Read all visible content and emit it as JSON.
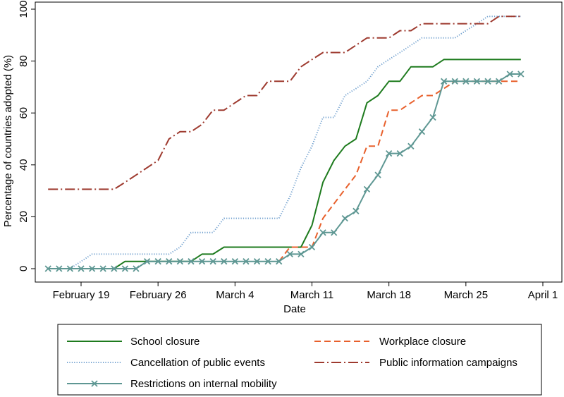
{
  "chart_data": {
    "type": "line",
    "title": "",
    "xlabel": "Date",
    "ylabel": "Percentage of countries adopted (%)",
    "ylim": [
      0,
      100
    ],
    "yticks": [
      0,
      20,
      40,
      60,
      80,
      100
    ],
    "x_ticks": [
      {
        "date": "2020-02-19",
        "label": "February 19"
      },
      {
        "date": "2020-02-26",
        "label": "February 26"
      },
      {
        "date": "2020-03-04",
        "label": "March 4"
      },
      {
        "date": "2020-03-11",
        "label": "March 11"
      },
      {
        "date": "2020-03-18",
        "label": "March 18"
      },
      {
        "date": "2020-03-25",
        "label": "March 25"
      },
      {
        "date": "2020-04-01",
        "label": "April 1"
      }
    ],
    "xlim": [
      "2020-02-15",
      "2020-04-02"
    ],
    "grid": false,
    "legend_position": "bottom",
    "series": [
      {
        "name": "School closure",
        "color": "#1e7b1e",
        "dash": "solid",
        "marker": "none",
        "points": [
          [
            "2020-02-16",
            0
          ],
          [
            "2020-02-17",
            0
          ],
          [
            "2020-02-18",
            0
          ],
          [
            "2020-02-19",
            0
          ],
          [
            "2020-02-20",
            0
          ],
          [
            "2020-02-21",
            0
          ],
          [
            "2020-02-22",
            0
          ],
          [
            "2020-02-23",
            2.8
          ],
          [
            "2020-02-24",
            2.8
          ],
          [
            "2020-02-25",
            2.8
          ],
          [
            "2020-02-26",
            2.8
          ],
          [
            "2020-02-27",
            2.8
          ],
          [
            "2020-02-28",
            2.8
          ],
          [
            "2020-02-29",
            2.8
          ],
          [
            "2020-03-01",
            5.6
          ],
          [
            "2020-03-02",
            5.6
          ],
          [
            "2020-03-03",
            8.3
          ],
          [
            "2020-03-04",
            8.3
          ],
          [
            "2020-03-05",
            8.3
          ],
          [
            "2020-03-06",
            8.3
          ],
          [
            "2020-03-07",
            8.3
          ],
          [
            "2020-03-08",
            8.3
          ],
          [
            "2020-03-09",
            8.3
          ],
          [
            "2020-03-10",
            8.3
          ],
          [
            "2020-03-11",
            16.7
          ],
          [
            "2020-03-12",
            33.3
          ],
          [
            "2020-03-13",
            41.7
          ],
          [
            "2020-03-14",
            47.2
          ],
          [
            "2020-03-15",
            50
          ],
          [
            "2020-03-16",
            63.9
          ],
          [
            "2020-03-17",
            66.7
          ],
          [
            "2020-03-18",
            72.2
          ],
          [
            "2020-03-19",
            72.2
          ],
          [
            "2020-03-20",
            77.8
          ],
          [
            "2020-03-21",
            77.8
          ],
          [
            "2020-03-22",
            77.8
          ],
          [
            "2020-03-23",
            80.6
          ],
          [
            "2020-03-24",
            80.6
          ],
          [
            "2020-03-25",
            80.6
          ],
          [
            "2020-03-26",
            80.6
          ],
          [
            "2020-03-27",
            80.6
          ],
          [
            "2020-03-28",
            80.6
          ],
          [
            "2020-03-29",
            80.6
          ],
          [
            "2020-03-30",
            80.6
          ]
        ]
      },
      {
        "name": "Workplace closure",
        "color": "#e8602c",
        "dash": "dashed",
        "marker": "none",
        "points": [
          [
            "2020-03-08",
            2.8
          ],
          [
            "2020-03-09",
            8.3
          ],
          [
            "2020-03-10",
            8.3
          ],
          [
            "2020-03-11",
            8.3
          ],
          [
            "2020-03-12",
            19.4
          ],
          [
            "2020-03-13",
            25
          ],
          [
            "2020-03-14",
            30.6
          ],
          [
            "2020-03-15",
            36.1
          ],
          [
            "2020-03-16",
            47.2
          ],
          [
            "2020-03-17",
            47.2
          ],
          [
            "2020-03-18",
            61.1
          ],
          [
            "2020-03-19",
            61.1
          ],
          [
            "2020-03-20",
            63.9
          ],
          [
            "2020-03-21",
            66.7
          ],
          [
            "2020-03-22",
            66.7
          ],
          [
            "2020-03-23",
            69.4
          ],
          [
            "2020-03-24",
            72.2
          ],
          [
            "2020-03-25",
            72.2
          ],
          [
            "2020-03-26",
            72.2
          ],
          [
            "2020-03-27",
            72.2
          ],
          [
            "2020-03-28",
            72.2
          ],
          [
            "2020-03-29",
            72.2
          ],
          [
            "2020-03-30",
            72.2
          ]
        ]
      },
      {
        "name": "Cancellation of public events",
        "color": "#6f9fce",
        "dash": "dotted",
        "marker": "none",
        "points": [
          [
            "2020-02-16",
            0
          ],
          [
            "2020-02-17",
            0
          ],
          [
            "2020-02-18",
            0
          ],
          [
            "2020-02-19",
            2.8
          ],
          [
            "2020-02-20",
            5.6
          ],
          [
            "2020-02-21",
            5.6
          ],
          [
            "2020-02-22",
            5.6
          ],
          [
            "2020-02-23",
            5.6
          ],
          [
            "2020-02-24",
            5.6
          ],
          [
            "2020-02-25",
            5.6
          ],
          [
            "2020-02-26",
            5.6
          ],
          [
            "2020-02-27",
            5.6
          ],
          [
            "2020-02-28",
            8.3
          ],
          [
            "2020-02-29",
            13.9
          ],
          [
            "2020-03-01",
            13.9
          ],
          [
            "2020-03-02",
            13.9
          ],
          [
            "2020-03-03",
            19.4
          ],
          [
            "2020-03-04",
            19.4
          ],
          [
            "2020-03-05",
            19.4
          ],
          [
            "2020-03-06",
            19.4
          ],
          [
            "2020-03-07",
            19.4
          ],
          [
            "2020-03-08",
            19.4
          ],
          [
            "2020-03-09",
            27.8
          ],
          [
            "2020-03-10",
            38.9
          ],
          [
            "2020-03-11",
            47.2
          ],
          [
            "2020-03-12",
            58.3
          ],
          [
            "2020-03-13",
            58.3
          ],
          [
            "2020-03-14",
            66.7
          ],
          [
            "2020-03-15",
            69.4
          ],
          [
            "2020-03-16",
            72.2
          ],
          [
            "2020-03-17",
            77.8
          ],
          [
            "2020-03-18",
            80.6
          ],
          [
            "2020-03-19",
            83.3
          ],
          [
            "2020-03-20",
            86.1
          ],
          [
            "2020-03-21",
            88.9
          ],
          [
            "2020-03-22",
            88.9
          ],
          [
            "2020-03-23",
            88.9
          ],
          [
            "2020-03-24",
            88.9
          ],
          [
            "2020-03-25",
            91.7
          ],
          [
            "2020-03-26",
            94.4
          ],
          [
            "2020-03-27",
            97.2
          ],
          [
            "2020-03-28",
            97.2
          ],
          [
            "2020-03-29",
            97.2
          ],
          [
            "2020-03-30",
            97.2
          ]
        ]
      },
      {
        "name": "Public information campaigns",
        "color": "#9e3a2f",
        "dash": "dashdot",
        "marker": "none",
        "points": [
          [
            "2020-02-16",
            30.6
          ],
          [
            "2020-02-17",
            30.6
          ],
          [
            "2020-02-18",
            30.6
          ],
          [
            "2020-02-19",
            30.6
          ],
          [
            "2020-02-20",
            30.6
          ],
          [
            "2020-02-21",
            30.6
          ],
          [
            "2020-02-22",
            30.6
          ],
          [
            "2020-02-23",
            33.3
          ],
          [
            "2020-02-24",
            36.1
          ],
          [
            "2020-02-25",
            38.9
          ],
          [
            "2020-02-26",
            41.7
          ],
          [
            "2020-02-27",
            50
          ],
          [
            "2020-02-28",
            52.8
          ],
          [
            "2020-02-29",
            52.8
          ],
          [
            "2020-03-01",
            55.6
          ],
          [
            "2020-03-02",
            61.1
          ],
          [
            "2020-03-03",
            61.1
          ],
          [
            "2020-03-04",
            63.9
          ],
          [
            "2020-03-05",
            66.7
          ],
          [
            "2020-03-06",
            66.7
          ],
          [
            "2020-03-07",
            72.2
          ],
          [
            "2020-03-08",
            72.2
          ],
          [
            "2020-03-09",
            72.2
          ],
          [
            "2020-03-10",
            77.8
          ],
          [
            "2020-03-11",
            80.6
          ],
          [
            "2020-03-12",
            83.3
          ],
          [
            "2020-03-13",
            83.3
          ],
          [
            "2020-03-14",
            83.3
          ],
          [
            "2020-03-15",
            86.1
          ],
          [
            "2020-03-16",
            88.9
          ],
          [
            "2020-03-17",
            88.9
          ],
          [
            "2020-03-18",
            88.9
          ],
          [
            "2020-03-19",
            91.7
          ],
          [
            "2020-03-20",
            91.7
          ],
          [
            "2020-03-21",
            94.4
          ],
          [
            "2020-03-22",
            94.4
          ],
          [
            "2020-03-23",
            94.4
          ],
          [
            "2020-03-24",
            94.4
          ],
          [
            "2020-03-25",
            94.4
          ],
          [
            "2020-03-26",
            94.4
          ],
          [
            "2020-03-27",
            94.4
          ],
          [
            "2020-03-28",
            97.2
          ],
          [
            "2020-03-29",
            97.2
          ],
          [
            "2020-03-30",
            97.2
          ]
        ]
      },
      {
        "name": "Restrictions on internal mobility",
        "color": "#5e9793",
        "dash": "solid",
        "marker": "x",
        "points": [
          [
            "2020-02-16",
            0
          ],
          [
            "2020-02-17",
            0
          ],
          [
            "2020-02-18",
            0
          ],
          [
            "2020-02-19",
            0
          ],
          [
            "2020-02-20",
            0
          ],
          [
            "2020-02-21",
            0
          ],
          [
            "2020-02-22",
            0
          ],
          [
            "2020-02-23",
            0
          ],
          [
            "2020-02-24",
            0
          ],
          [
            "2020-02-25",
            2.8
          ],
          [
            "2020-02-26",
            2.8
          ],
          [
            "2020-02-27",
            2.8
          ],
          [
            "2020-02-28",
            2.8
          ],
          [
            "2020-02-29",
            2.8
          ],
          [
            "2020-03-01",
            2.8
          ],
          [
            "2020-03-02",
            2.8
          ],
          [
            "2020-03-03",
            2.8
          ],
          [
            "2020-03-04",
            2.8
          ],
          [
            "2020-03-05",
            2.8
          ],
          [
            "2020-03-06",
            2.8
          ],
          [
            "2020-03-07",
            2.8
          ],
          [
            "2020-03-08",
            2.8
          ],
          [
            "2020-03-09",
            5.6
          ],
          [
            "2020-03-10",
            5.6
          ],
          [
            "2020-03-11",
            8.3
          ],
          [
            "2020-03-12",
            13.9
          ],
          [
            "2020-03-13",
            13.9
          ],
          [
            "2020-03-14",
            19.4
          ],
          [
            "2020-03-15",
            22.2
          ],
          [
            "2020-03-16",
            30.6
          ],
          [
            "2020-03-17",
            36.1
          ],
          [
            "2020-03-18",
            44.4
          ],
          [
            "2020-03-19",
            44.4
          ],
          [
            "2020-03-20",
            47.2
          ],
          [
            "2020-03-21",
            52.8
          ],
          [
            "2020-03-22",
            58.3
          ],
          [
            "2020-03-23",
            72.2
          ],
          [
            "2020-03-24",
            72.2
          ],
          [
            "2020-03-25",
            72.2
          ],
          [
            "2020-03-26",
            72.2
          ],
          [
            "2020-03-27",
            72.2
          ],
          [
            "2020-03-28",
            72.2
          ],
          [
            "2020-03-29",
            75
          ],
          [
            "2020-03-30",
            75
          ]
        ]
      }
    ]
  }
}
